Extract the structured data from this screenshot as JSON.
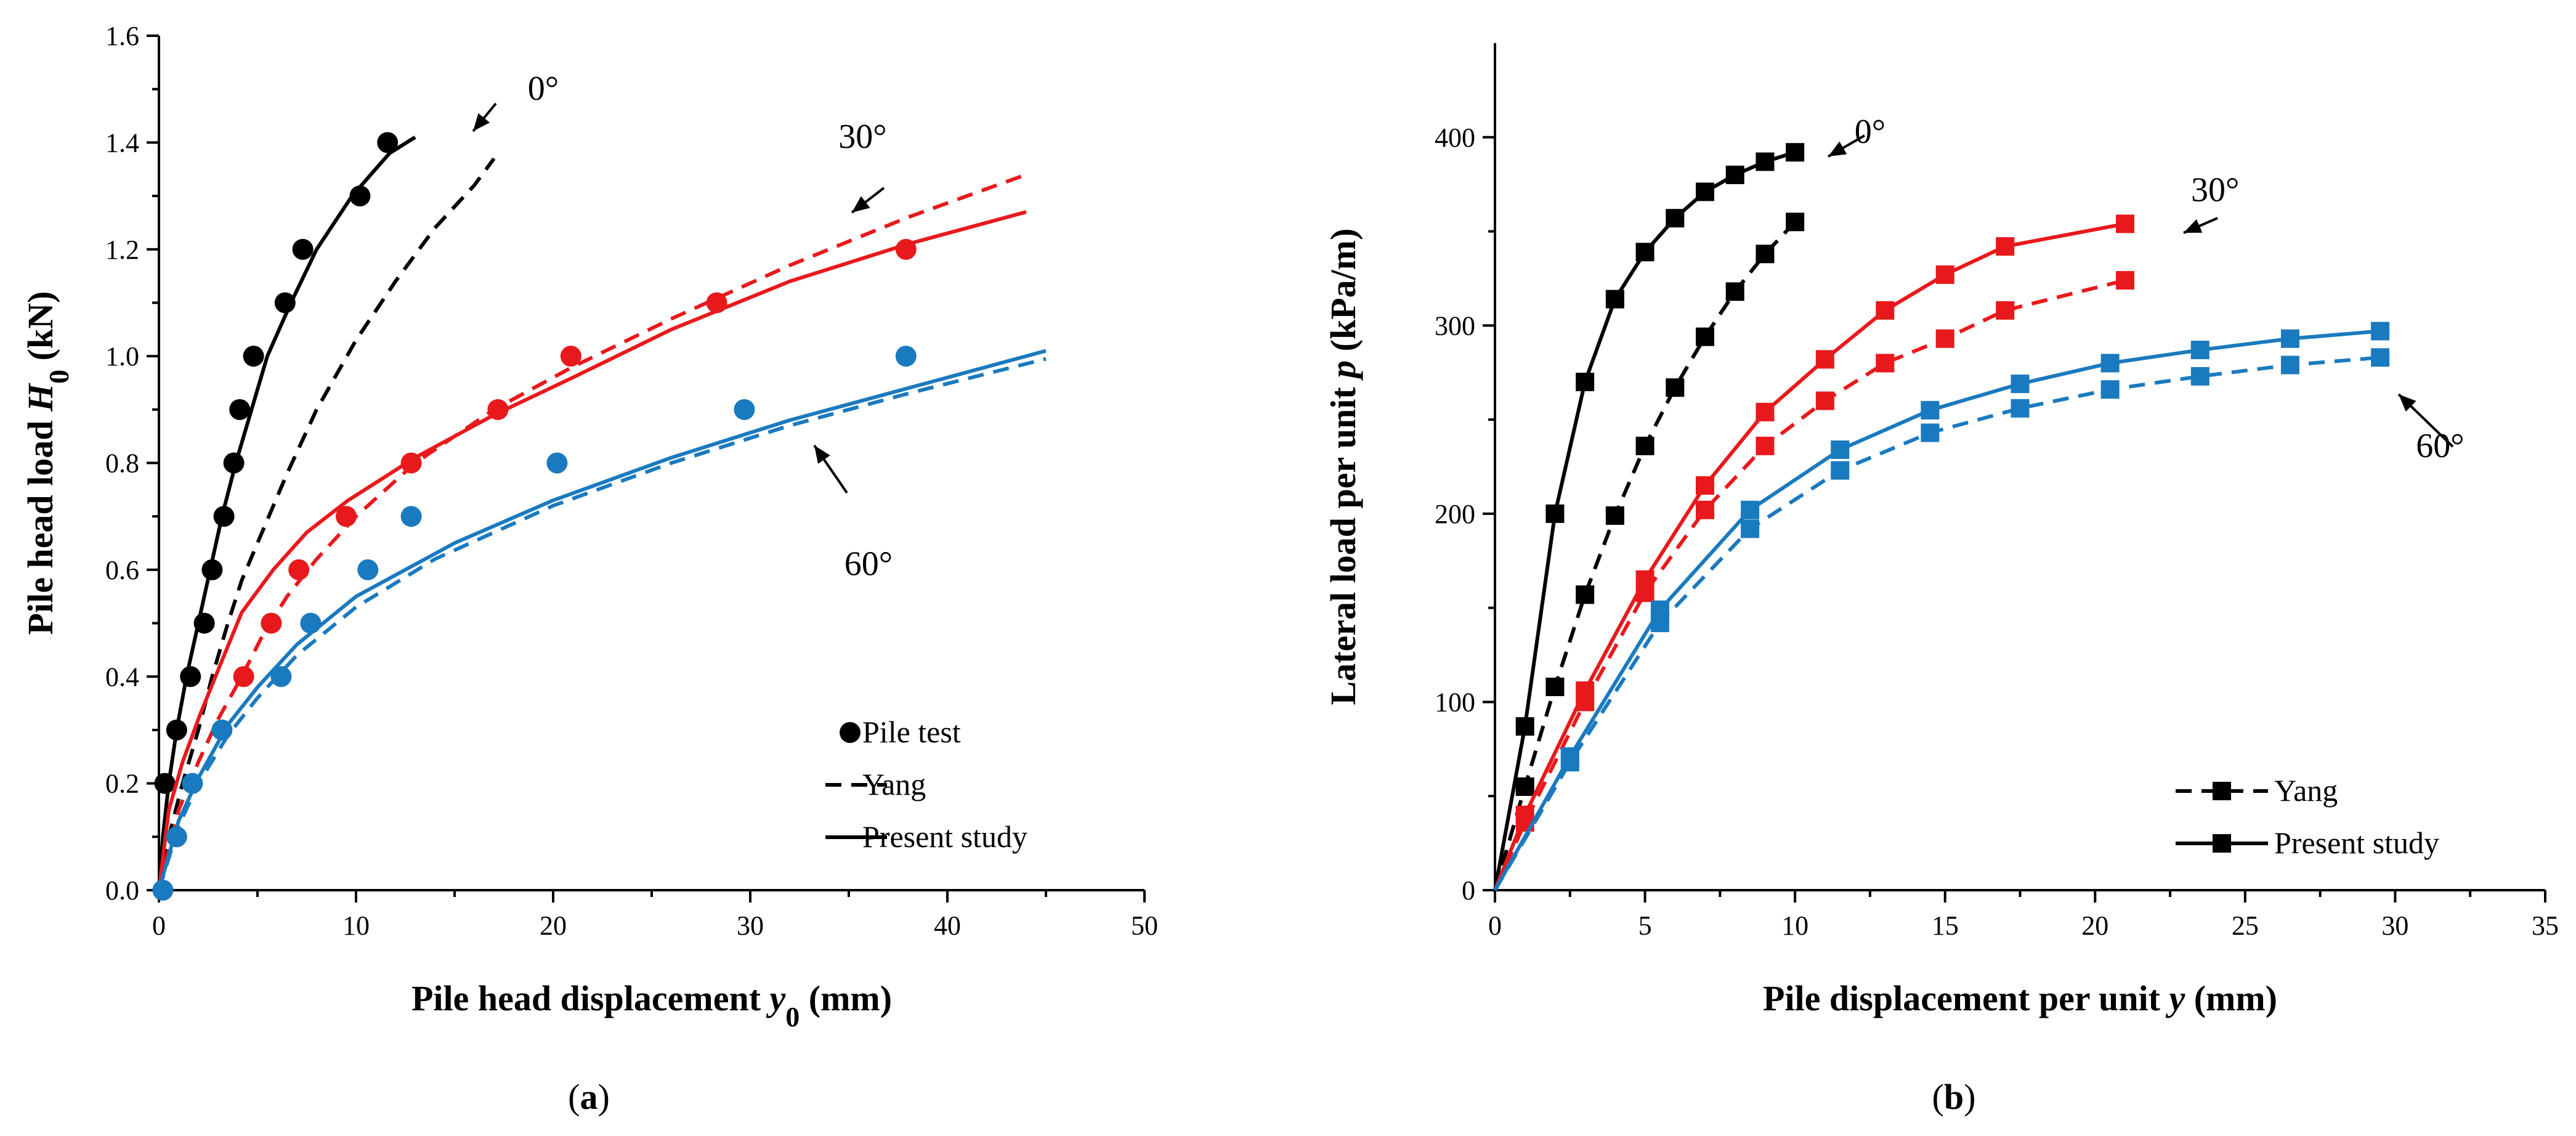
{
  "chart_data": [
    {
      "id": "a",
      "type": "line",
      "caption_letter": "a",
      "xlabel_main": "Pile head displacement ",
      "xlabel_var": "y",
      "xlabel_sub": "0",
      "xlabel_unit": " (mm)",
      "ylabel_main": "Pile head load ",
      "ylabel_var": "H",
      "ylabel_sub": "0",
      "ylabel_unit": " (kN)",
      "xlim": [
        0,
        50
      ],
      "ylim": [
        0,
        1.6
      ],
      "xticks": [
        "0",
        "10",
        "20",
        "30",
        "40",
        "50"
      ],
      "yticks": [
        "0.0",
        "0.2",
        "0.4",
        "0.6",
        "0.8",
        "1.0",
        "1.2",
        "1.4",
        "1.6"
      ],
      "legend": [
        {
          "label": "Pile test",
          "style": "dot"
        },
        {
          "label": "Yang",
          "style": "dash"
        },
        {
          "label": "Present study",
          "style": "solid"
        }
      ],
      "annotations": [
        {
          "text": "0°",
          "x": 19.5,
          "y": 1.48
        },
        {
          "text": "30°",
          "x": 35.7,
          "y": 1.39
        },
        {
          "text": "60°",
          "x": 36,
          "y": 0.59
        }
      ],
      "series": [
        {
          "color": "#000000",
          "style": "dot",
          "points": [
            [
              0.3,
              0.2
            ],
            [
              0.9,
              0.3
            ],
            [
              1.6,
              0.4
            ],
            [
              2.3,
              0.5
            ],
            [
              2.7,
              0.6
            ],
            [
              3.3,
              0.7
            ],
            [
              3.8,
              0.8
            ],
            [
              4.1,
              0.9
            ],
            [
              4.8,
              1.0
            ],
            [
              6.4,
              1.1
            ],
            [
              7.3,
              1.2
            ],
            [
              10.2,
              1.3
            ],
            [
              11.6,
              1.4
            ]
          ]
        },
        {
          "color": "#000000",
          "style": "dash",
          "points": [
            [
              0,
              0
            ],
            [
              0.5,
              0.1
            ],
            [
              1.2,
              0.2
            ],
            [
              2,
              0.3
            ],
            [
              2.7,
              0.4
            ],
            [
              3.5,
              0.5
            ],
            [
              4.2,
              0.58
            ],
            [
              5,
              0.65
            ],
            [
              6.5,
              0.78
            ],
            [
              8,
              0.9
            ],
            [
              10,
              1.03
            ],
            [
              12,
              1.14
            ],
            [
              14,
              1.24
            ],
            [
              16,
              1.32
            ],
            [
              17,
              1.37
            ]
          ]
        },
        {
          "color": "#000000",
          "style": "solid",
          "points": [
            [
              0,
              0
            ],
            [
              0.2,
              0.1
            ],
            [
              0.5,
              0.2
            ],
            [
              0.9,
              0.3
            ],
            [
              1.4,
              0.4
            ],
            [
              2,
              0.5
            ],
            [
              2.6,
              0.6
            ],
            [
              3.2,
              0.7
            ],
            [
              3.9,
              0.8
            ],
            [
              4.7,
              0.9
            ],
            [
              5.5,
              1.0
            ],
            [
              6.7,
              1.1
            ],
            [
              8,
              1.2
            ],
            [
              9.8,
              1.3
            ],
            [
              11.7,
              1.38
            ],
            [
              13,
              1.41
            ]
          ]
        },
        {
          "color": "#e8191c",
          "style": "dot",
          "points": [
            [
              4.3,
              0.4
            ],
            [
              5.7,
              0.5
            ],
            [
              7.1,
              0.6
            ],
            [
              9.5,
              0.7
            ],
            [
              12.8,
              0.8
            ],
            [
              17.2,
              0.9
            ],
            [
              20.9,
              1.0
            ],
            [
              28.3,
              1.1
            ],
            [
              37.9,
              1.2
            ]
          ]
        },
        {
          "color": "#e8191c",
          "style": "dash",
          "points": [
            [
              0,
              0
            ],
            [
              1,
              0.15
            ],
            [
              2,
              0.24
            ],
            [
              3,
              0.32
            ],
            [
              4.2,
              0.4
            ],
            [
              5.3,
              0.48
            ],
            [
              6.5,
              0.55
            ],
            [
              8,
              0.62
            ],
            [
              10,
              0.7
            ],
            [
              13,
              0.8
            ],
            [
              17,
              0.9
            ],
            [
              21,
              0.98
            ],
            [
              26,
              1.07
            ],
            [
              32,
              1.17
            ],
            [
              38,
              1.26
            ],
            [
              44,
              1.34
            ]
          ]
        },
        {
          "color": "#e8191c",
          "style": "solid",
          "points": [
            [
              0,
              0
            ],
            [
              0.5,
              0.15
            ],
            [
              1.2,
              0.24
            ],
            [
              2.1,
              0.33
            ],
            [
              3.2,
              0.43
            ],
            [
              4.2,
              0.52
            ],
            [
              5.8,
              0.6
            ],
            [
              7.5,
              0.67
            ],
            [
              9.6,
              0.73
            ],
            [
              13,
              0.81
            ],
            [
              17,
              0.89
            ],
            [
              21,
              0.96
            ],
            [
              26,
              1.05
            ],
            [
              32,
              1.14
            ],
            [
              38,
              1.21
            ],
            [
              44,
              1.27
            ]
          ]
        },
        {
          "color": "#1a7abf",
          "style": "dot",
          "points": [
            [
              0.2,
              0.0
            ],
            [
              0.9,
              0.1
            ],
            [
              1.7,
              0.2
            ],
            [
              3.2,
              0.3
            ],
            [
              6.2,
              0.4
            ],
            [
              7.7,
              0.5
            ],
            [
              10.6,
              0.6
            ],
            [
              12.8,
              0.7
            ],
            [
              20.2,
              0.8
            ],
            [
              29.7,
              0.9
            ],
            [
              37.9,
              1.0
            ]
          ]
        },
        {
          "color": "#1a7abf",
          "style": "dash",
          "points": [
            [
              0,
              0
            ],
            [
              1,
              0.12
            ],
            [
              2,
              0.2
            ],
            [
              3.5,
              0.29
            ],
            [
              5,
              0.36
            ],
            [
              7,
              0.44
            ],
            [
              10,
              0.53
            ],
            [
              14,
              0.62
            ],
            [
              20,
              0.72
            ],
            [
              26,
              0.8
            ],
            [
              32,
              0.87
            ],
            [
              38,
              0.93
            ],
            [
              45,
              0.995
            ]
          ]
        },
        {
          "color": "#1a7abf",
          "style": "solid",
          "points": [
            [
              0,
              0
            ],
            [
              1,
              0.13
            ],
            [
              2,
              0.21
            ],
            [
              3.5,
              0.31
            ],
            [
              5,
              0.38
            ],
            [
              7,
              0.46
            ],
            [
              10,
              0.55
            ],
            [
              15,
              0.65
            ],
            [
              20,
              0.73
            ],
            [
              26,
              0.81
            ],
            [
              32,
              0.88
            ],
            [
              38,
              0.94
            ],
            [
              45,
              1.01
            ]
          ]
        }
      ]
    },
    {
      "id": "b",
      "type": "line",
      "caption_letter": "b",
      "xlabel_main": "Pile displacement per unit ",
      "xlabel_var": "y",
      "xlabel_unit": " (mm)",
      "ylabel_main": "Lateral load per unit ",
      "ylabel_var": "p",
      "ylabel_unit": " (kPa/m)",
      "xlim": [
        0,
        35
      ],
      "ylim": [
        0,
        450
      ],
      "xticks": [
        "0",
        "5",
        "10",
        "15",
        "20",
        "25",
        "30",
        "35"
      ],
      "yticks": [
        "0",
        "100",
        "200",
        "300",
        "400"
      ],
      "legend": [
        {
          "label": "Yang",
          "style": "dash-square"
        },
        {
          "label": "Present study",
          "style": "solid-square"
        }
      ],
      "annotations": [
        {
          "text": "0°",
          "x": 12.5,
          "y": 397
        },
        {
          "text": "30°",
          "x": 24,
          "y": 366
        },
        {
          "text": "60°",
          "x": 31.5,
          "y": 230
        }
      ],
      "series": [
        {
          "color": "#000000",
          "style": "dash",
          "points": [
            [
              0,
              0
            ],
            [
              1,
              55
            ],
            [
              2,
              108
            ],
            [
              3,
              157
            ],
            [
              4,
              199
            ],
            [
              5,
              236
            ],
            [
              6,
              267
            ],
            [
              7,
              294
            ],
            [
              8,
              318
            ],
            [
              9,
              338
            ],
            [
              10,
              355
            ]
          ]
        },
        {
          "color": "#000000",
          "style": "solid",
          "points": [
            [
              0,
              0
            ],
            [
              1,
              87
            ],
            [
              2,
              200
            ],
            [
              3,
              270
            ],
            [
              4,
              314
            ],
            [
              5,
              339
            ],
            [
              6,
              357
            ],
            [
              7,
              371
            ],
            [
              8,
              380
            ],
            [
              9,
              387
            ],
            [
              10,
              392
            ]
          ]
        },
        {
          "color": "#e8191c",
          "style": "dash",
          "points": [
            [
              0,
              0
            ],
            [
              1,
              36
            ],
            [
              3,
              100
            ],
            [
              5,
              158
            ],
            [
              7,
              202
            ],
            [
              9,
              236
            ],
            [
              11,
              260
            ],
            [
              13,
              280
            ],
            [
              15,
              293
            ],
            [
              17,
              308
            ],
            [
              21,
              324
            ]
          ]
        },
        {
          "color": "#e8191c",
          "style": "solid",
          "points": [
            [
              0,
              0
            ],
            [
              1,
              40
            ],
            [
              3,
              106
            ],
            [
              5,
              165
            ],
            [
              7,
              215
            ],
            [
              9,
              254
            ],
            [
              11,
              282
            ],
            [
              13,
              308
            ],
            [
              15,
              327
            ],
            [
              17,
              342
            ],
            [
              21,
              354
            ]
          ]
        },
        {
          "color": "#1a7abf",
          "style": "dash",
          "points": [
            [
              0,
              0
            ],
            [
              2.5,
              68
            ],
            [
              5.5,
              142
            ],
            [
              8.5,
              192
            ],
            [
              11.5,
              223
            ],
            [
              14.5,
              243
            ],
            [
              17.5,
              256
            ],
            [
              20.5,
              266
            ],
            [
              23.5,
              273
            ],
            [
              26.5,
              279
            ],
            [
              29.5,
              283
            ]
          ]
        },
        {
          "color": "#1a7abf",
          "style": "solid",
          "points": [
            [
              0,
              0
            ],
            [
              2.5,
              71
            ],
            [
              5.5,
              149
            ],
            [
              8.5,
              202
            ],
            [
              11.5,
              234
            ],
            [
              14.5,
              255
            ],
            [
              17.5,
              269
            ],
            [
              20.5,
              280
            ],
            [
              23.5,
              287
            ],
            [
              26.5,
              293
            ],
            [
              29.5,
              297
            ]
          ]
        }
      ]
    }
  ]
}
